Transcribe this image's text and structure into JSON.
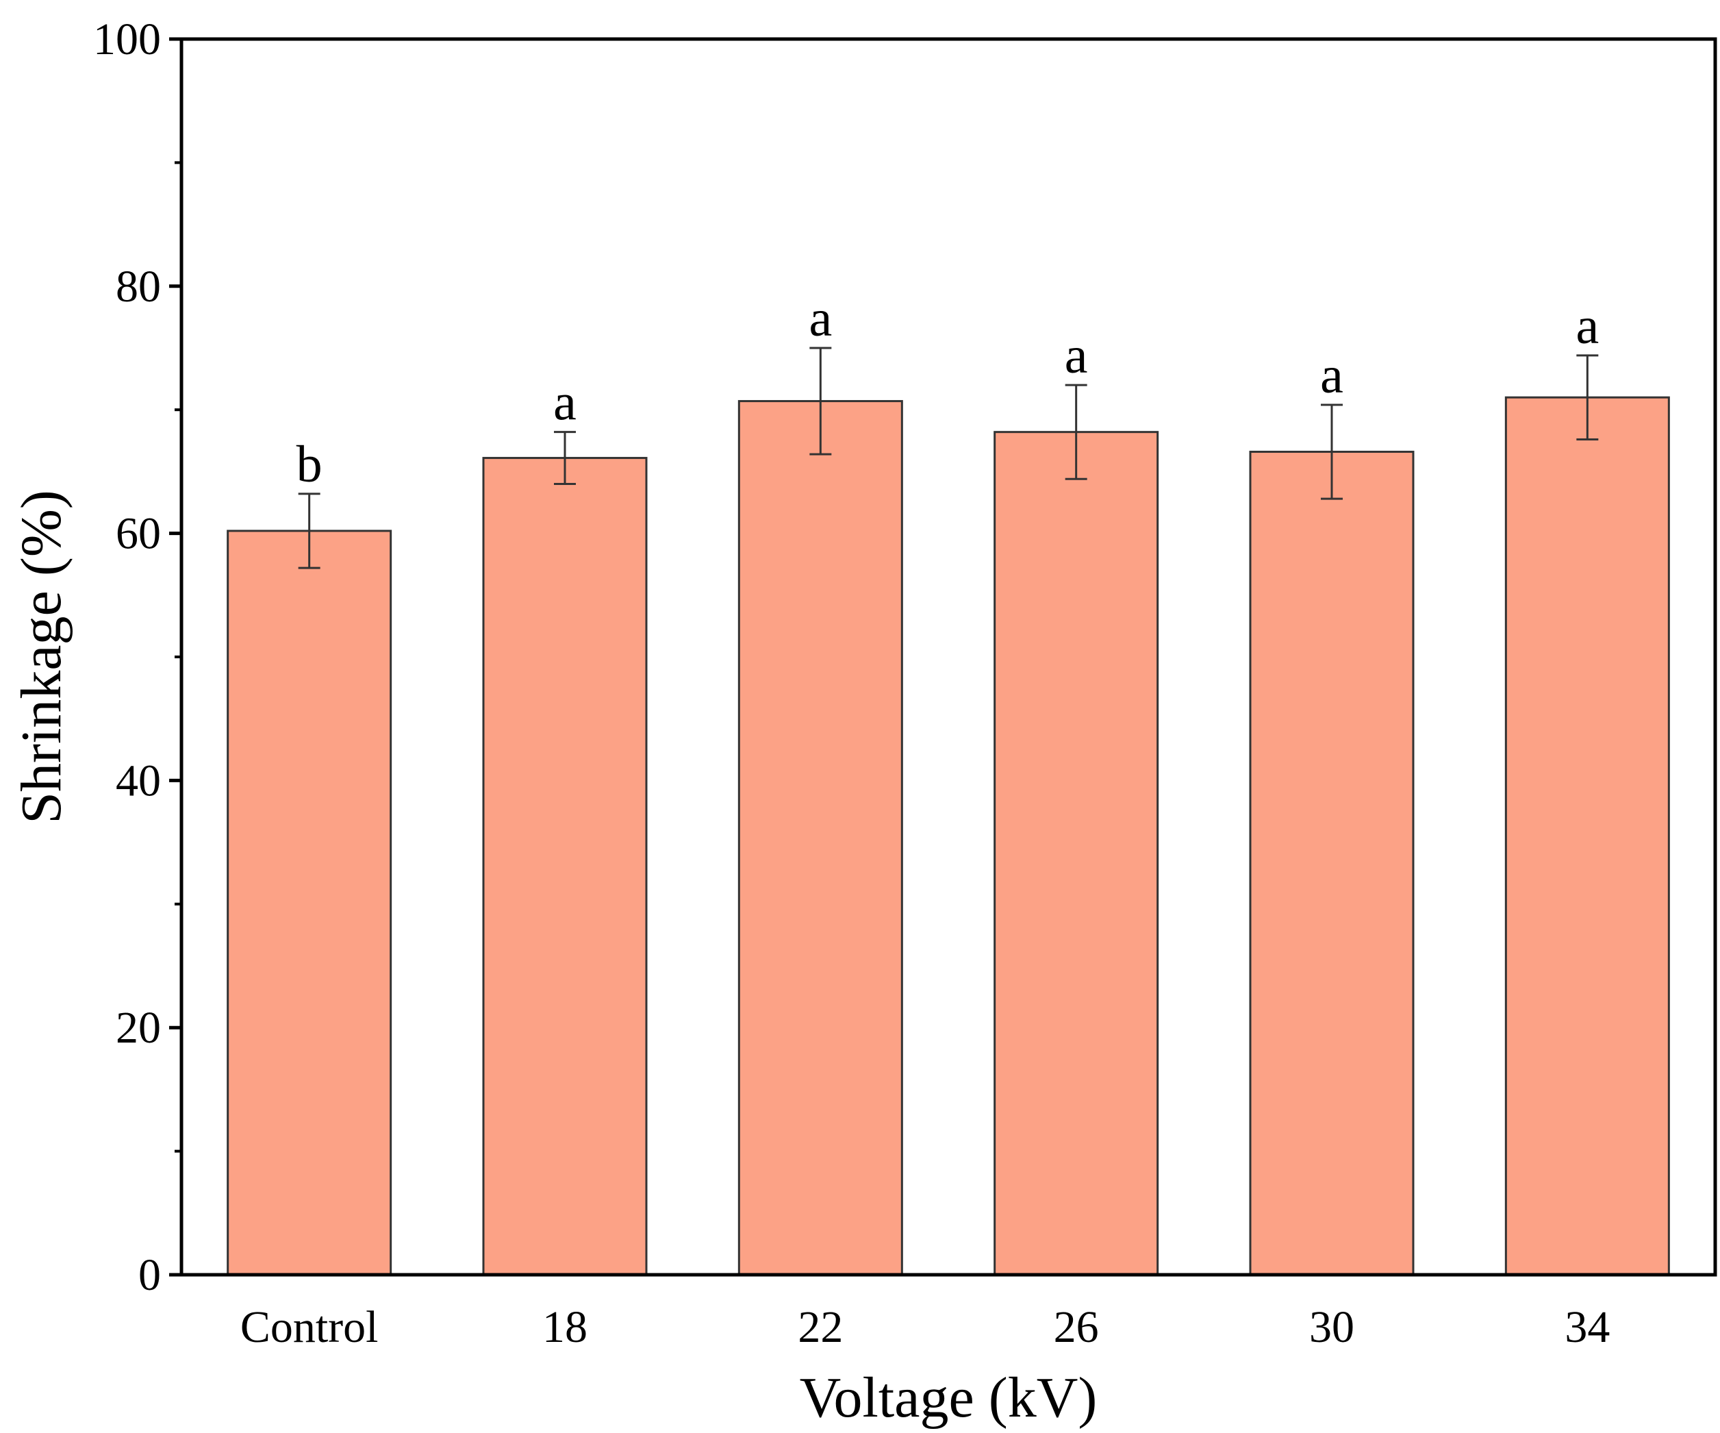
{
  "chart_data": {
    "type": "bar",
    "title": "",
    "xlabel": "Voltage (kV)",
    "ylabel": "Shrinkage (%)",
    "categories": [
      "Control",
      "18",
      "22",
      "26",
      "30",
      "34"
    ],
    "values": [
      60.2,
      66.1,
      70.7,
      68.2,
      66.6,
      71.0
    ],
    "errors": [
      3.0,
      2.1,
      4.3,
      3.8,
      3.8,
      3.4
    ],
    "significance": [
      "b",
      "a",
      "a",
      "a",
      "a",
      "a"
    ],
    "ylim": [
      0,
      100
    ],
    "yticks": [
      0,
      20,
      40,
      60,
      80,
      100
    ],
    "yticks_minor": [
      10,
      30,
      50,
      70,
      90
    ],
    "grid": false,
    "bar_color": "#FCA286",
    "bar_edge_color": "#333333"
  }
}
